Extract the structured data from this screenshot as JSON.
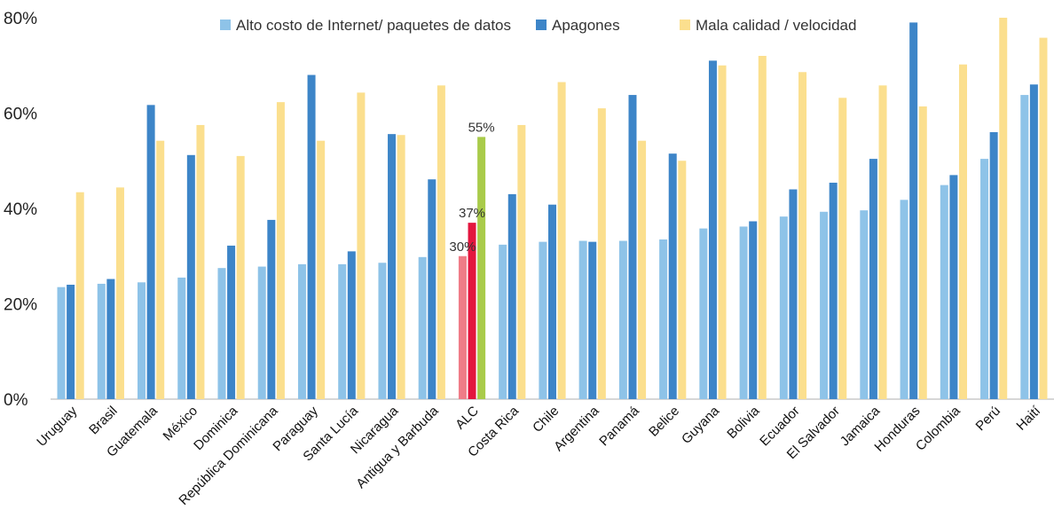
{
  "chart_data": {
    "type": "bar",
    "categories": [
      "Uruguay",
      "Brasil",
      "Guatemala",
      "México",
      "Dominica",
      "República Dominicana",
      "Paraguay",
      "Santa Lucía",
      "Nicaragua",
      "Antigua y Barbuda",
      "ALC",
      "Costa Rica",
      "Chile",
      "Argentina",
      "Panamá",
      "Belice",
      "Guyana",
      "Bolivia",
      "Ecuador",
      "El Salvador",
      "Jamaica",
      "Honduras",
      "Colombia",
      "Perú",
      "Haití"
    ],
    "series": [
      {
        "name": "Alto costo de Internet/ paquetes de datos",
        "color": "#8ec3e8",
        "values": [
          23.5,
          24.2,
          24.5,
          25.5,
          27.5,
          27.8,
          28.3,
          28.3,
          28.6,
          29.8,
          30,
          32.4,
          33,
          33.2,
          33.2,
          33.5,
          35.8,
          36.2,
          38.3,
          39.3,
          39.6,
          41.8,
          44.9,
          50.4,
          63.8
        ]
      },
      {
        "name": "Apagones",
        "color": "#3d85c8",
        "values": [
          24,
          25.2,
          61.7,
          51.2,
          32.2,
          37.6,
          68,
          31,
          55.6,
          46.1,
          37,
          43,
          40.8,
          33,
          63.8,
          51.5,
          71,
          37.3,
          44,
          45.4,
          50.4,
          79,
          47,
          56,
          66
        ]
      },
      {
        "name": "Mala calidad / velocidad",
        "color": "#fbdf8e",
        "values": [
          43.4,
          44.4,
          54.2,
          57.5,
          51,
          62.3,
          54.2,
          64.3,
          55.4,
          65.8,
          55,
          57.5,
          66.5,
          61,
          54.2,
          50,
          70,
          72,
          68.6,
          63.2,
          65.8,
          61.4,
          70.2,
          80,
          75.8
        ]
      }
    ],
    "highlight": {
      "category": "ALC",
      "colors": [
        "#ef7c87",
        "#e3163e",
        "#a9cb4a"
      ]
    },
    "data_labels": [
      {
        "category": "ALC",
        "series": 0,
        "text": "30%"
      },
      {
        "category": "ALC",
        "series": 1,
        "text": "37%"
      },
      {
        "category": "ALC",
        "series": 2,
        "text": "55%"
      }
    ],
    "y_ticks": [
      0,
      20,
      40,
      60,
      80
    ],
    "y_tick_labels": [
      "0%",
      "20%",
      "40%",
      "60%",
      "80%"
    ],
    "ylim": [
      0,
      80
    ],
    "grid": false,
    "legend_position": "top-center",
    "title": "",
    "xlabel": "",
    "ylabel": ""
  }
}
